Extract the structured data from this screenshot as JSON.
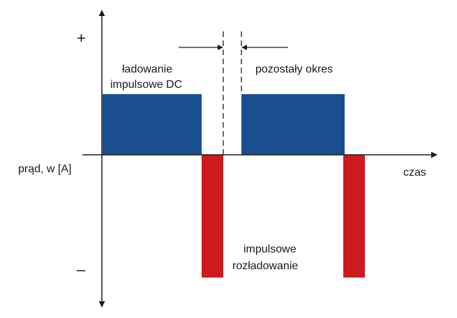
{
  "diagram": {
    "axes": {
      "plus_sign": "+",
      "minus_sign": "–",
      "y_label": "prąd, w [A]",
      "x_label": "czas"
    },
    "labels": {
      "charge_line1": "ładowanie",
      "charge_line2": "impulsowe DC",
      "rest": "pozostały okres",
      "discharge_line1": "impulsowe",
      "discharge_line2": "rozładowanie"
    },
    "colors": {
      "charge": "#1a4f8f",
      "discharge": "#cc1a1e",
      "axis": "#1a1a1a"
    }
  }
}
